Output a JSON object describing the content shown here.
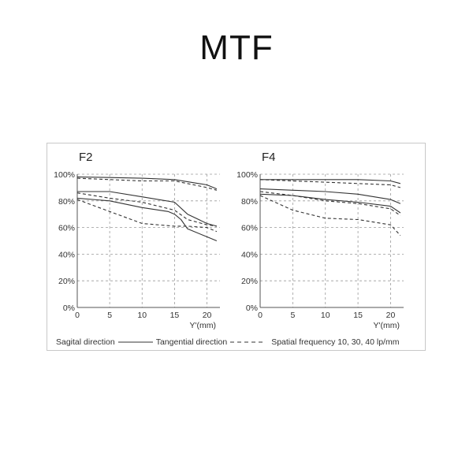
{
  "page": {
    "title": "MTF"
  },
  "legend": {
    "sagittal": "Sagital direction",
    "tangential": "Tangential direction",
    "frequency": "Spatial frequency 10, 30, 40 lp/mm"
  },
  "chart_data": [
    {
      "type": "line",
      "title": "F2",
      "xlabel": "Y'(mm)",
      "ylabel": "",
      "xlim": [
        0,
        22
      ],
      "ylim": [
        0,
        100
      ],
      "xticks": [
        "0",
        "5",
        "10",
        "15",
        "20"
      ],
      "yticks": [
        "0%",
        "20%",
        "40%",
        "60%",
        "80%",
        "100%"
      ],
      "grid": true,
      "series": [
        {
          "style": "solid",
          "x": [
            0,
            5,
            10,
            15,
            20,
            21.5
          ],
          "values": [
            98,
            97.5,
            97,
            96,
            92,
            89
          ]
        },
        {
          "style": "dashed",
          "x": [
            0,
            5,
            10,
            15,
            20,
            21.5
          ],
          "values": [
            97,
            96,
            95,
            95,
            90,
            88
          ]
        },
        {
          "style": "solid",
          "x": [
            0,
            5,
            10,
            15,
            17,
            20,
            21.5
          ],
          "values": [
            87,
            87,
            83,
            79,
            70,
            63,
            61
          ]
        },
        {
          "style": "dashed",
          "x": [
            0,
            5,
            10,
            15,
            17,
            20,
            21.5
          ],
          "values": [
            86,
            82,
            79,
            73,
            66,
            62,
            61
          ]
        },
        {
          "style": "solid",
          "x": [
            0,
            5,
            10,
            14,
            15,
            16,
            17,
            20,
            21.5
          ],
          "values": [
            82,
            80,
            75,
            72,
            70,
            66,
            59,
            53,
            50
          ]
        },
        {
          "style": "dashed",
          "x": [
            0,
            5,
            10,
            15,
            17,
            20,
            21.5
          ],
          "values": [
            81,
            72,
            63,
            61,
            61,
            60,
            57
          ]
        }
      ]
    },
    {
      "type": "line",
      "title": "F4",
      "xlabel": "Y'(mm)",
      "ylabel": "",
      "xlim": [
        0,
        22
      ],
      "ylim": [
        0,
        100
      ],
      "xticks": [
        "0",
        "5",
        "10",
        "15",
        "20"
      ],
      "yticks": [
        "0%",
        "20%",
        "40%",
        "60%",
        "80%",
        "100%"
      ],
      "grid": true,
      "series": [
        {
          "style": "solid",
          "x": [
            0,
            5,
            10,
            15,
            20,
            21.5
          ],
          "values": [
            96,
            96,
            96,
            96,
            95,
            93
          ]
        },
        {
          "style": "dashed",
          "x": [
            0,
            5,
            10,
            15,
            20,
            21.5
          ],
          "values": [
            96,
            95,
            94,
            93,
            92,
            90
          ]
        },
        {
          "style": "solid",
          "x": [
            0,
            5,
            10,
            15,
            20,
            21.5
          ],
          "values": [
            89,
            88,
            87,
            85,
            81,
            78
          ]
        },
        {
          "style": "dashed",
          "x": [
            0,
            5,
            10,
            15,
            20,
            21.5
          ],
          "values": [
            87,
            84,
            80,
            78,
            74,
            69
          ]
        },
        {
          "style": "solid",
          "x": [
            0,
            5,
            10,
            15,
            20,
            21.5
          ],
          "values": [
            85,
            84,
            81,
            79,
            76,
            71
          ]
        },
        {
          "style": "dashed",
          "x": [
            0,
            5,
            10,
            15,
            20,
            21.5
          ],
          "values": [
            84,
            73,
            67,
            66,
            62,
            54
          ]
        }
      ]
    }
  ]
}
